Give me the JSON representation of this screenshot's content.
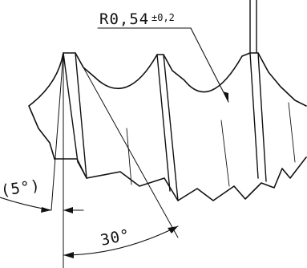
{
  "annotations": {
    "radius_label": "R0,54",
    "radius_tolerance": "±0,2",
    "angle_large": "30°",
    "angle_small": "(5°)"
  },
  "colors": {
    "ink": "#111111",
    "background": "#ffffff"
  }
}
